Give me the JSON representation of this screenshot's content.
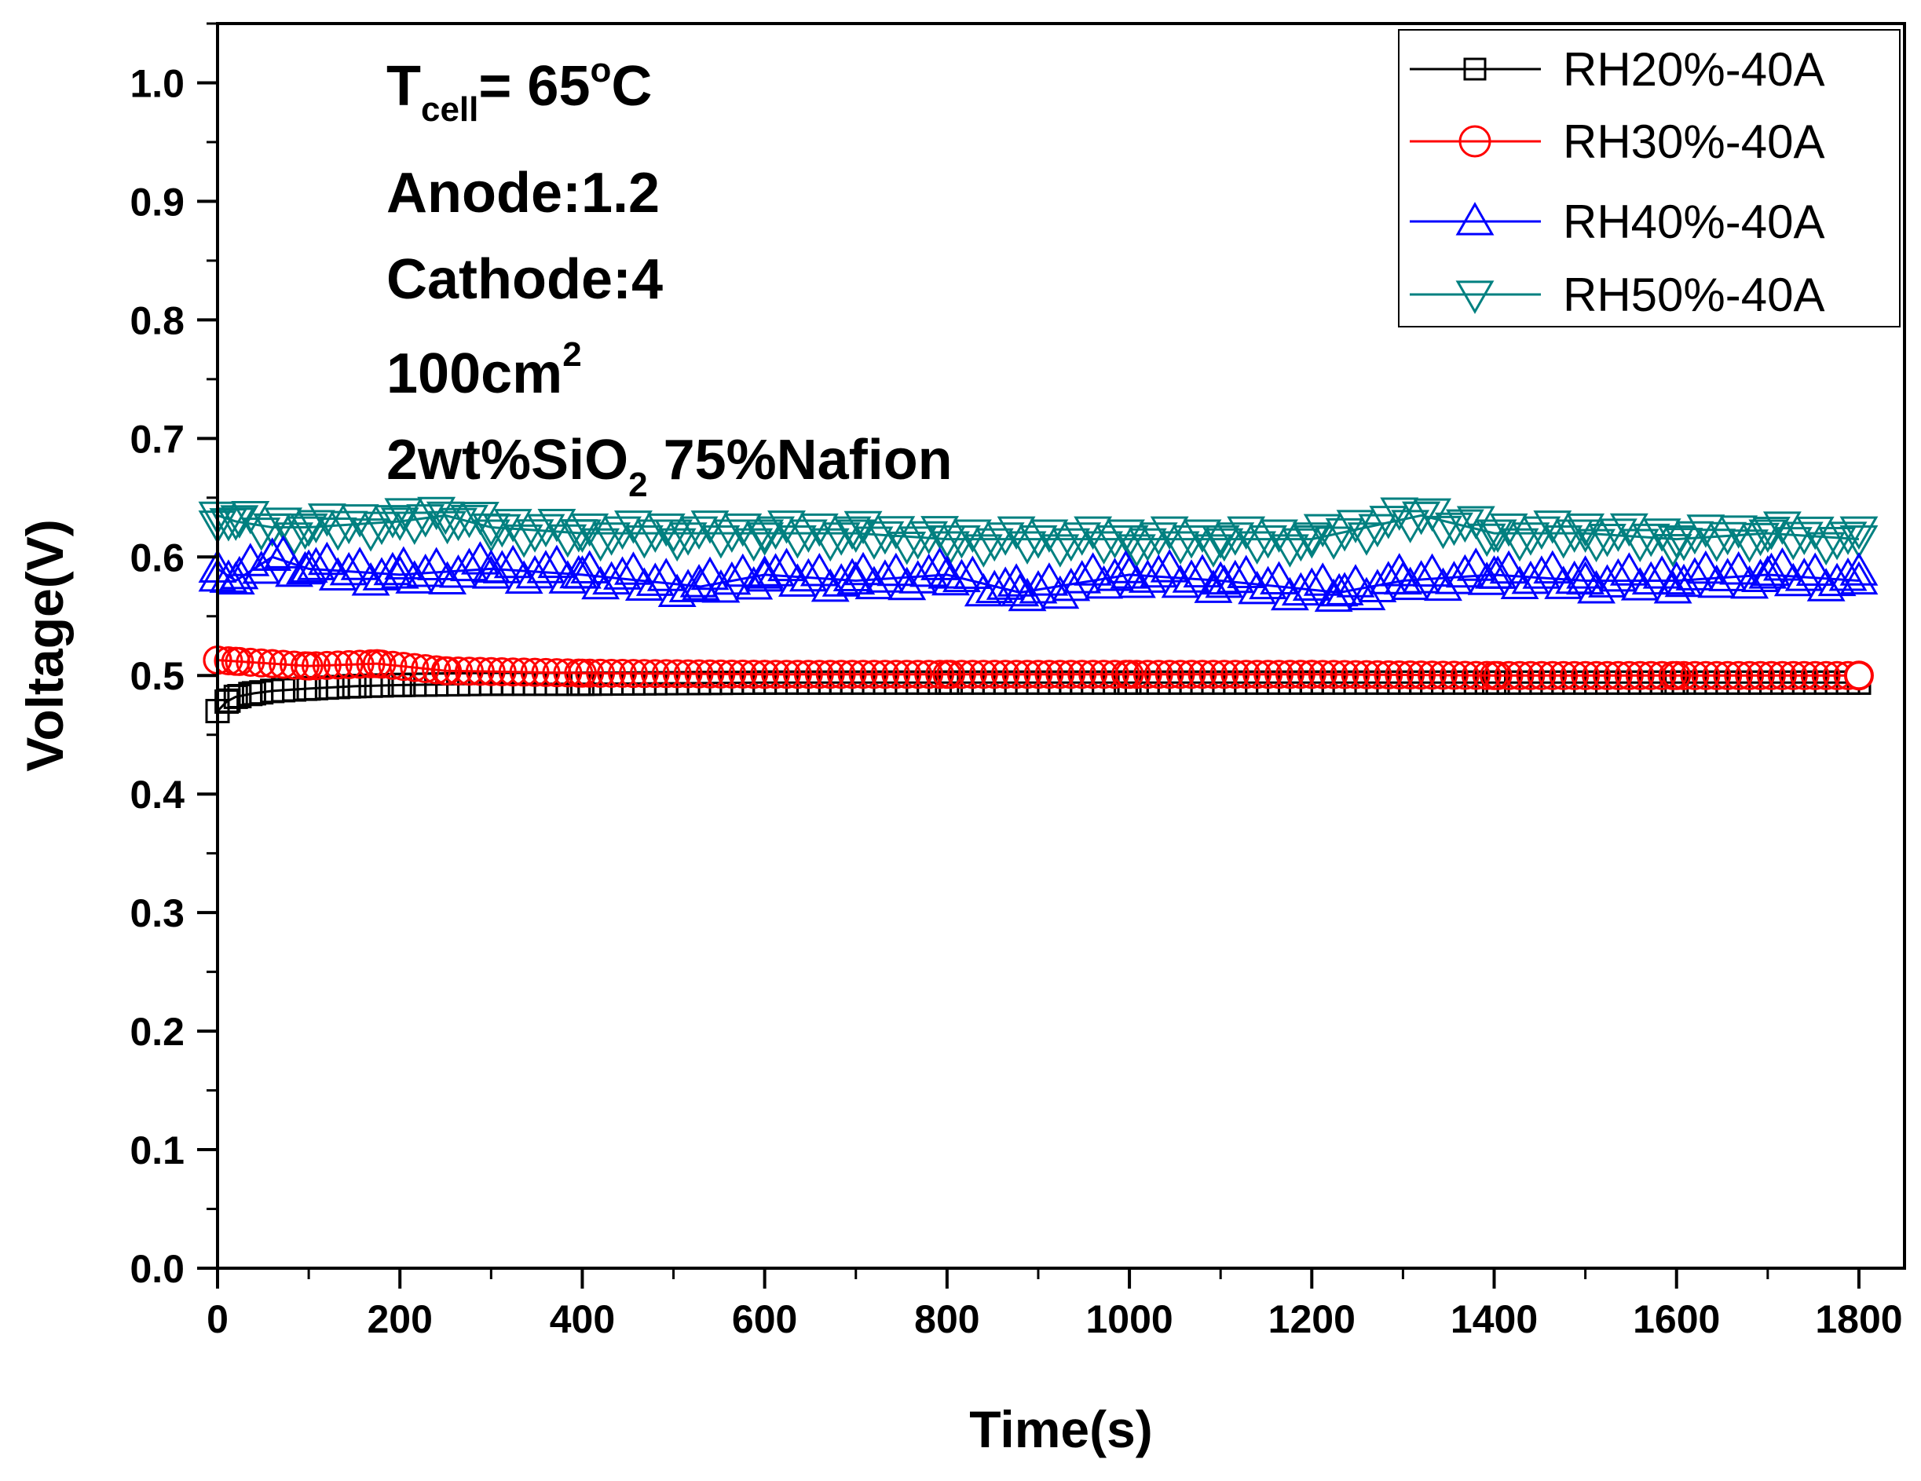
{
  "chart_data": {
    "type": "line",
    "xlabel": "Time(s)",
    "ylabel": "Voltage(V)",
    "xlim": [
      0,
      1850
    ],
    "ylim": [
      0,
      1.05
    ],
    "x_ticks": [
      0,
      200,
      400,
      600,
      800,
      1000,
      1200,
      1400,
      1600,
      1800
    ],
    "x_tick_labels": [
      "0",
      "200",
      "400",
      "600",
      "800",
      "1000",
      "1200",
      "1400",
      "1600",
      "1800"
    ],
    "y_ticks": [
      0.0,
      0.1,
      0.2,
      0.3,
      0.4,
      0.5,
      0.6,
      0.7,
      0.8,
      0.9,
      1.0
    ],
    "y_tick_labels": [
      "0.0",
      "0.1",
      "0.2",
      "0.3",
      "0.4",
      "0.5",
      "0.6",
      "0.7",
      "0.8",
      "0.9",
      "1.0"
    ],
    "grid": false,
    "legend_position": "top-right",
    "annotations": {
      "tcell_main": "T",
      "tcell_sub": "cell",
      "tcell_value": "= 65",
      "tcell_deg": "o",
      "tcell_unit": "C",
      "anode": "Anode:1.2",
      "cathode": "Cathode:4",
      "area_main": "100cm",
      "area_sup": "2",
      "membrane_a": "2wt%SiO",
      "membrane_sub": "2",
      "membrane_b": " 75%Nafion"
    },
    "series": [
      {
        "name": "RH20%-40A",
        "color": "#000000",
        "marker": "square",
        "x": [
          0,
          10,
          20,
          40,
          60,
          100,
          150,
          200,
          300,
          400,
          600,
          800,
          1000,
          1200,
          1400,
          1600,
          1800
        ],
        "y": [
          0.47,
          0.478,
          0.482,
          0.485,
          0.487,
          0.489,
          0.491,
          0.492,
          0.493,
          0.493,
          0.494,
          0.494,
          0.494,
          0.494,
          0.494,
          0.494,
          0.494
        ]
      },
      {
        "name": "RH30%-40A",
        "color": "#ff0000",
        "marker": "circle",
        "x": [
          0,
          20,
          60,
          100,
          175,
          250,
          400,
          600,
          800,
          1000,
          1200,
          1400,
          1600,
          1800
        ],
        "y": [
          0.513,
          0.512,
          0.51,
          0.508,
          0.51,
          0.504,
          0.502,
          0.501,
          0.501,
          0.501,
          0.501,
          0.5,
          0.5,
          0.5
        ]
      },
      {
        "name": "RH40%-40A",
        "color": "#0000ff",
        "marker": "triangle-up",
        "x": [
          0,
          20,
          60,
          100,
          200,
          300,
          400,
          530,
          600,
          700,
          800,
          880,
          1000,
          1100,
          1230,
          1300,
          1400,
          1500,
          1600,
          1700,
          1800
        ],
        "y": [
          0.59,
          0.58,
          0.6,
          0.59,
          0.585,
          0.59,
          0.585,
          0.575,
          0.585,
          0.58,
          0.585,
          0.57,
          0.585,
          0.58,
          0.57,
          0.58,
          0.585,
          0.58,
          0.58,
          0.585,
          0.58
        ]
      },
      {
        "name": "RH50%-40A",
        "color": "#008080",
        "marker": "triangle-down",
        "x": [
          0,
          20,
          60,
          100,
          200,
          250,
          300,
          400,
          500,
          600,
          700,
          800,
          900,
          1000,
          1100,
          1200,
          1320,
          1400,
          1500,
          1600,
          1700,
          1800
        ],
        "y": [
          0.635,
          0.63,
          0.625,
          0.625,
          0.63,
          0.635,
          0.625,
          0.62,
          0.62,
          0.62,
          0.62,
          0.615,
          0.615,
          0.615,
          0.615,
          0.615,
          0.635,
          0.62,
          0.62,
          0.615,
          0.62,
          0.615
        ]
      }
    ]
  }
}
